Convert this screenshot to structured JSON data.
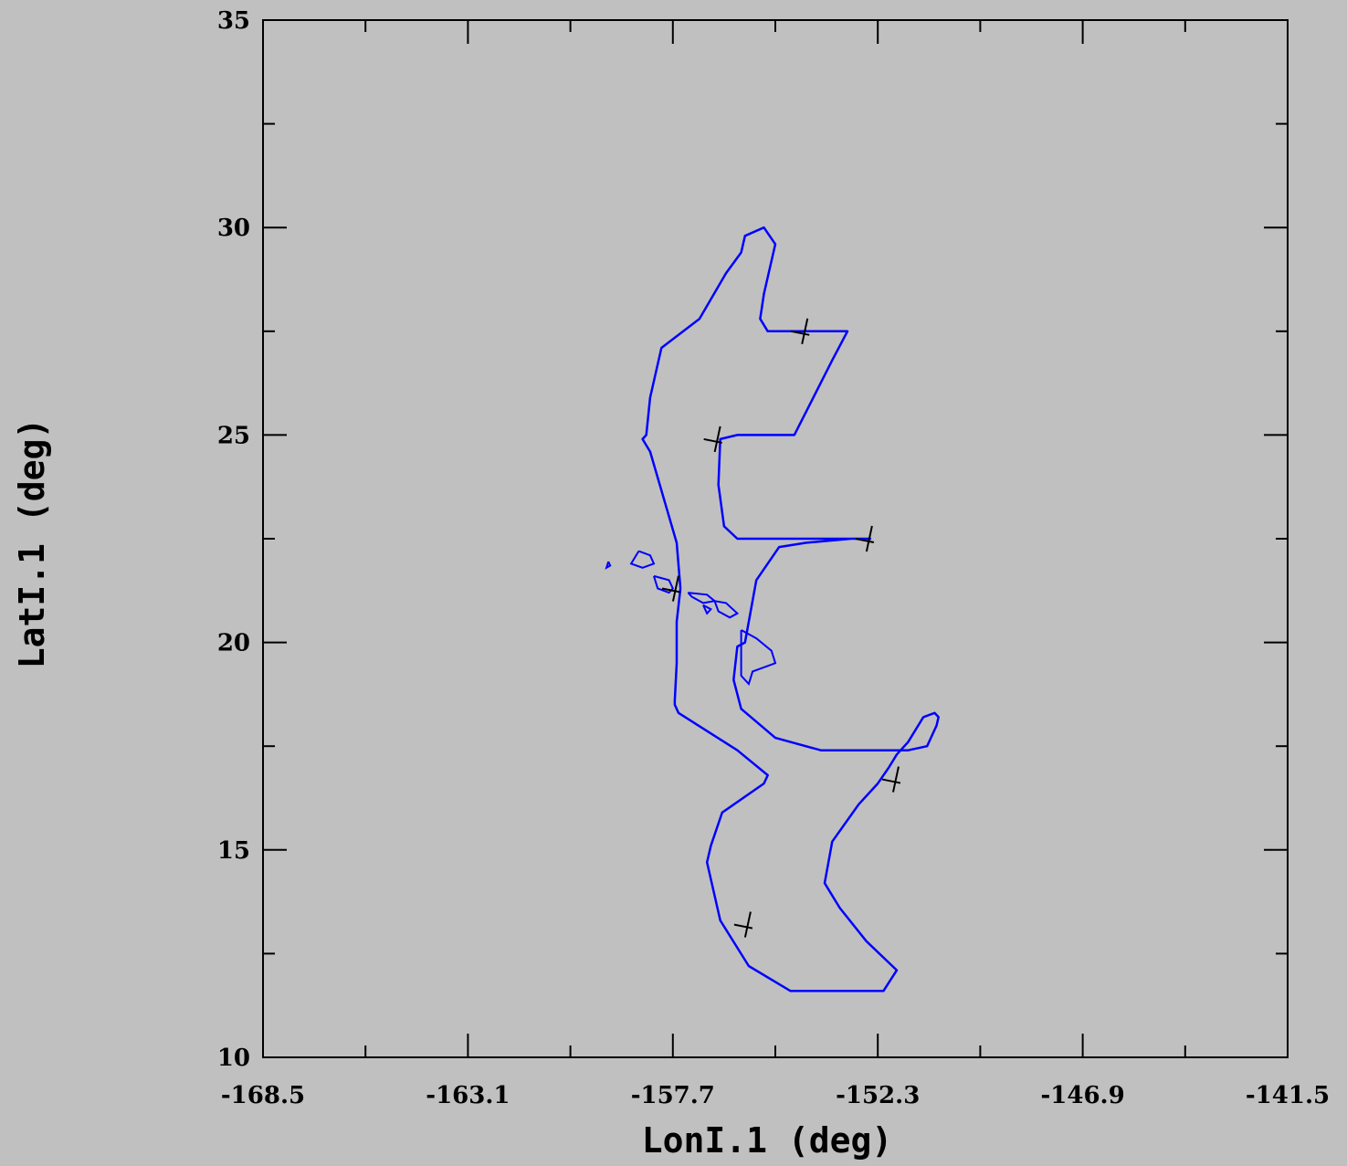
{
  "chart_data": {
    "type": "line",
    "xlabel": "LonI.1 (deg)",
    "ylabel": "LatI.1 (deg)",
    "xlim": [
      -168.5,
      -141.5
    ],
    "ylim": [
      10,
      35
    ],
    "x_ticks": [
      -168.5,
      -163.1,
      -157.7,
      -152.3,
      -146.9,
      -141.5
    ],
    "x_tick_labels": [
      "-168.5",
      "-163.1",
      "-157.7",
      "-152.3",
      "-146.9",
      "-141.5"
    ],
    "y_ticks": [
      10,
      15,
      20,
      25,
      30,
      35
    ],
    "y_tick_labels": [
      "10",
      "15",
      "20",
      "25",
      "30",
      "35"
    ],
    "colors": {
      "background": "#c0c0c0",
      "track": "#0000ff",
      "coast": "#0000ff",
      "markers": "#000000"
    },
    "series": [
      {
        "x": [
          -157.5,
          -157.6,
          -157.6,
          -157.65,
          -157.65,
          -157.55,
          -156.0,
          -155.2,
          -155.3,
          -156.4,
          -156.7,
          -156.8,
          -156.45,
          -155.7,
          -154.6,
          -154.3,
          -154.0,
          -153.9,
          -153.5,
          -152.5,
          -152.4,
          -152.3,
          -152.15,
          -151.8,
          -152.6,
          -153.3,
          -153.7,
          -153.5,
          -152.8,
          -152.3,
          -152.0,
          -151.8,
          -151.5,
          -151.1,
          -150.8,
          -150.7,
          -150.75,
          -151.0,
          -151.5,
          -152.4,
          -153.8,
          -155.0,
          -155.9,
          -156.1,
          -156.0,
          -155.8,
          -155.5,
          -154.9,
          -154.2,
          -153.0,
          -152.7,
          -152.5,
          -152.5,
          -154.2,
          -156.0,
          -156.35,
          -156.5,
          -156.45,
          -156.0,
          -155.0,
          -154.8,
          -154.5,
          -153.5,
          -153.1,
          -153.9,
          -154.6,
          -155.2,
          -155.4,
          -155.3,
          -155.0,
          -155.3,
          -155.8,
          -155.9,
          -156.3,
          -157.0,
          -158.0,
          -158.3,
          -158.4,
          -158.5,
          -158.3,
          -157.6,
          -157.5
        ],
        "y": [
          21.3,
          20.5,
          19.5,
          18.6,
          18.5,
          18.3,
          17.4,
          16.8,
          16.6,
          15.9,
          15.1,
          14.7,
          13.3,
          12.2,
          11.6,
          11.6,
          11.6,
          11.6,
          11.6,
          11.6,
          11.6,
          11.6,
          11.6,
          12.1,
          12.8,
          13.6,
          14.2,
          15.2,
          16.1,
          16.6,
          17.0,
          17.3,
          17.6,
          18.2,
          18.3,
          18.2,
          18.0,
          17.5,
          17.4,
          17.4,
          17.4,
          17.7,
          18.4,
          19.1,
          19.9,
          20.0,
          21.5,
          22.3,
          22.4,
          22.5,
          22.5,
          22.5,
          22.5,
          22.5,
          22.5,
          22.8,
          23.8,
          24.9,
          25.0,
          25.0,
          25.0,
          25.0,
          26.8,
          27.5,
          27.5,
          27.5,
          27.5,
          27.8,
          28.4,
          29.6,
          30.0,
          29.8,
          29.4,
          28.9,
          27.8,
          27.1,
          25.9,
          25.0,
          24.9,
          24.6,
          22.4,
          21.3
        ]
      }
    ],
    "coastlines": [
      {
        "x": [
          -158.6,
          -158.3,
          -158.2,
          -158.5,
          -158.8,
          -158.6
        ],
        "y": [
          22.2,
          22.1,
          21.9,
          21.8,
          21.9,
          22.2
        ]
      },
      {
        "x": [
          -159.4,
          -159.35,
          -159.45,
          -159.4
        ],
        "y": [
          21.95,
          21.85,
          21.8,
          21.95
        ]
      },
      {
        "x": [
          -158.2,
          -157.8,
          -157.7,
          -157.8,
          -158.1,
          -158.2
        ],
        "y": [
          21.6,
          21.5,
          21.3,
          21.2,
          21.3,
          21.6
        ]
      },
      {
        "x": [
          -157.3,
          -156.8,
          -156.6,
          -156.9,
          -157.2,
          -157.3
        ],
        "y": [
          21.2,
          21.15,
          21.0,
          20.95,
          21.1,
          21.2
        ]
      },
      {
        "x": [
          -156.9,
          -156.7,
          -156.8,
          -156.9
        ],
        "y": [
          20.9,
          20.8,
          20.7,
          20.9
        ]
      },
      {
        "x": [
          -156.6,
          -156.3,
          -156.0,
          -156.2,
          -156.5,
          -156.6
        ],
        "y": [
          21.0,
          20.95,
          20.7,
          20.6,
          20.75,
          21.0
        ]
      },
      {
        "x": [
          -155.9,
          -155.5,
          -155.1,
          -155.0,
          -155.6,
          -155.7,
          -155.9,
          -155.9
        ],
        "y": [
          20.3,
          20.1,
          19.8,
          19.5,
          19.3,
          19.0,
          19.2,
          20.3
        ]
      }
    ],
    "markers": [
      {
        "x": -154.2,
        "y": 27.5
      },
      {
        "x": -156.5,
        "y": 24.9
      },
      {
        "x": -152.5,
        "y": 22.5
      },
      {
        "x": -157.6,
        "y": 21.3
      },
      {
        "x": -151.8,
        "y": 16.7
      },
      {
        "x": -155.7,
        "y": 13.2
      }
    ]
  }
}
